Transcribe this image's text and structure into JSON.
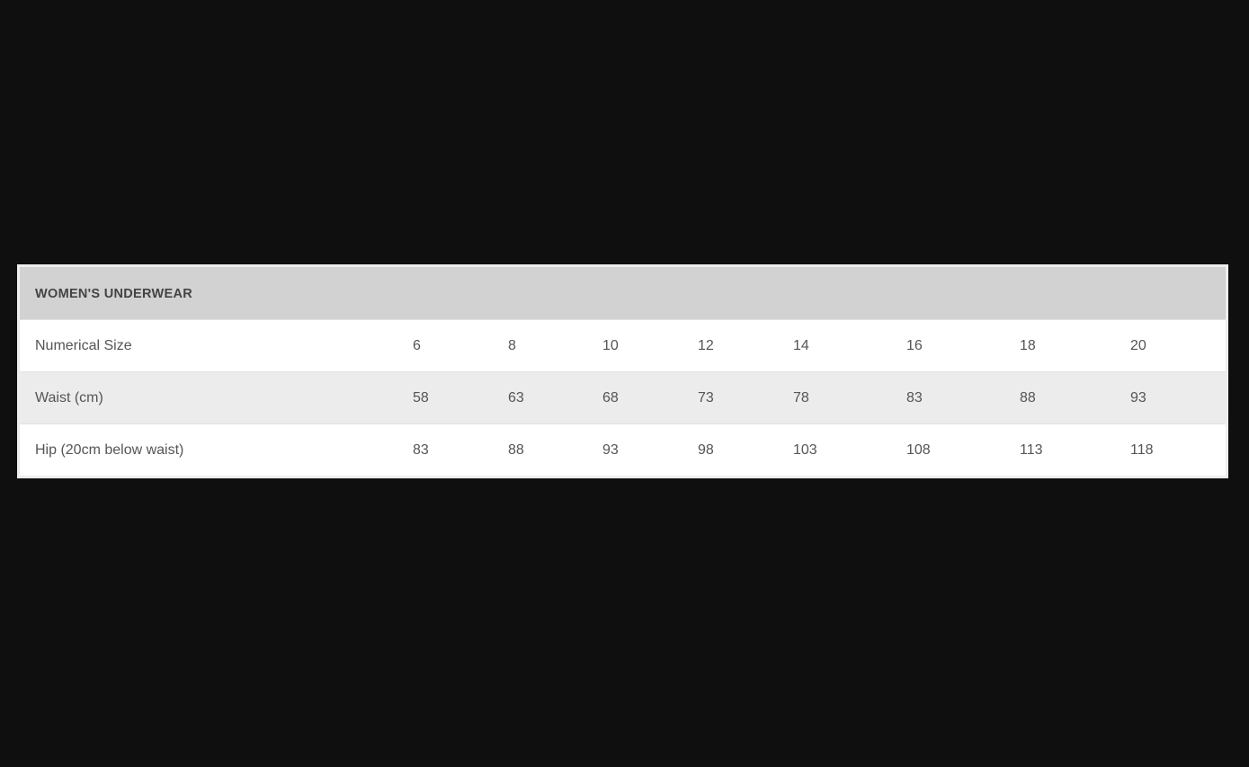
{
  "table": {
    "title": "WOMEN'S UNDERWEAR",
    "rows": [
      {
        "label": "Numerical Size",
        "values": [
          "6",
          "8",
          "10",
          "12",
          "14",
          "16",
          "18",
          "20"
        ]
      },
      {
        "label": "Waist (cm)",
        "values": [
          "58",
          "63",
          "68",
          "73",
          "78",
          "83",
          "88",
          "93"
        ]
      },
      {
        "label": "Hip (20cm below waist)",
        "values": [
          "83",
          "88",
          "93",
          "98",
          "103",
          "108",
          "113",
          "118"
        ]
      }
    ]
  },
  "colors": {
    "header_bg": "#d2d2d2",
    "alt_row_bg": "#ececec",
    "text": "#555555",
    "page_bg": "#0f0f0f"
  }
}
